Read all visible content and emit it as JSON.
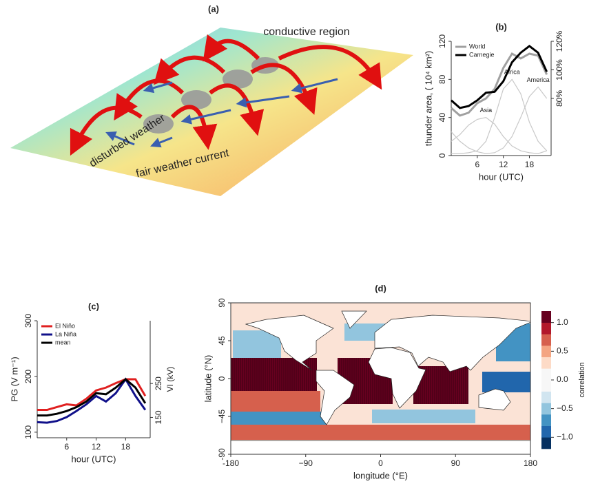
{
  "diagram": {
    "title": "(a)",
    "labels": [
      "conductive region",
      "disturbed weather",
      "fair weather current"
    ]
  },
  "chart_data": [
    {
      "type": "line",
      "title": "(b)",
      "xlabel": "hour (UTC)",
      "ylabel": "thunder area, ( 10⁴ km²)",
      "x": [
        0,
        2,
        4,
        6,
        8,
        10,
        12,
        14,
        16,
        18,
        20,
        22
      ],
      "xlim": [
        0,
        23
      ],
      "xticks": [
        6,
        12,
        18
      ],
      "ylim": [
        0,
        120
      ],
      "yticks": [
        0,
        40,
        80,
        120
      ],
      "y2lim": [
        40,
        120
      ],
      "y2ticks": [
        {
          "value": 80,
          "label": "80%"
        },
        {
          "value": 100,
          "label": "100%"
        },
        {
          "value": 120,
          "label": "120%"
        }
      ],
      "series": [
        {
          "name": "World",
          "color": "#a0a0a0",
          "values": [
            50,
            42,
            45,
            55,
            60,
            70,
            92,
            107,
            102,
            107,
            105,
            85
          ]
        },
        {
          "name": "Carnegie",
          "color": "#000000",
          "values": [
            58,
            50,
            52,
            58,
            66,
            67,
            78,
            98,
            108,
            115,
            108,
            88
          ]
        }
      ],
      "components": [
        {
          "name": "Asia",
          "color": "#c8c8c8",
          "values": [
            15,
            22,
            32,
            38,
            40,
            33,
            20,
            10,
            5,
            3,
            2,
            5
          ]
        },
        {
          "name": "Africa",
          "color": "#c8c8c8",
          "values": [
            2,
            2,
            3,
            5,
            15,
            40,
            70,
            80,
            65,
            35,
            15,
            5
          ]
        },
        {
          "name": "America",
          "color": "#c8c8c8",
          "values": [
            25,
            15,
            8,
            4,
            2,
            3,
            8,
            20,
            40,
            62,
            72,
            60
          ]
        }
      ]
    },
    {
      "type": "line",
      "title": "(c)",
      "xlabel": "hour (UTC)",
      "ylabel": "PG (V m⁻¹)",
      "y2label": "VI (kV)",
      "x": [
        0,
        2,
        4,
        6,
        8,
        10,
        12,
        14,
        16,
        18,
        20,
        22
      ],
      "xlim": [
        0,
        23
      ],
      "xticks": [
        6,
        12,
        18
      ],
      "ylim": [
        90,
        300
      ],
      "yticks": [
        100,
        200,
        300
      ],
      "y2lim": [
        90,
        435
      ],
      "y2ticks": [
        150,
        250
      ],
      "series": [
        {
          "name": "El Niño",
          "color": "#e02020",
          "values": [
            140,
            140,
            145,
            150,
            148,
            160,
            175,
            180,
            188,
            195,
            195,
            165
          ]
        },
        {
          "name": "La Niña",
          "color": "#10108a",
          "values": [
            118,
            117,
            120,
            127,
            138,
            150,
            165,
            155,
            170,
            195,
            165,
            140
          ]
        },
        {
          "name": "mean",
          "color": "#000000",
          "values": [
            130,
            130,
            133,
            138,
            145,
            155,
            170,
            168,
            180,
            195,
            180,
            152
          ]
        }
      ]
    },
    {
      "type": "map",
      "title": "(d)",
      "xlabel": "longitude (°E)",
      "ylabel": "latitude (°N)",
      "colorbar_label": "correlation",
      "xlim": [
        -180,
        180
      ],
      "xticks": [
        {
          "value": -180,
          "label": "-180"
        },
        {
          "value": -90,
          "label": "−90"
        },
        0,
        90,
        180
      ],
      "ylim": [
        -90,
        90
      ],
      "yticks": [
        {
          "value": -90,
          "label": "-90"
        },
        {
          "value": -45,
          "label": "−45"
        },
        0,
        45,
        90
      ],
      "clim": [
        -1.2,
        1.2
      ],
      "cticks": [
        {
          "value": -1,
          "label": "−1.0"
        },
        {
          "value": -0.5,
          "label": "−0.5"
        },
        {
          "value": 0,
          "label": "0.0"
        },
        {
          "value": 0.5,
          "label": "0.5"
        },
        {
          "value": 1,
          "label": "1.0"
        }
      ],
      "colors": [
        "#053061",
        "#2166ac",
        "#4393c3",
        "#92c5de",
        "#d1e5f0",
        "#f7f7f7",
        "#f7f7f7",
        "#fddbc7",
        "#f4a582",
        "#d6604d",
        "#b2182b",
        "#67001f"
      ]
    }
  ]
}
